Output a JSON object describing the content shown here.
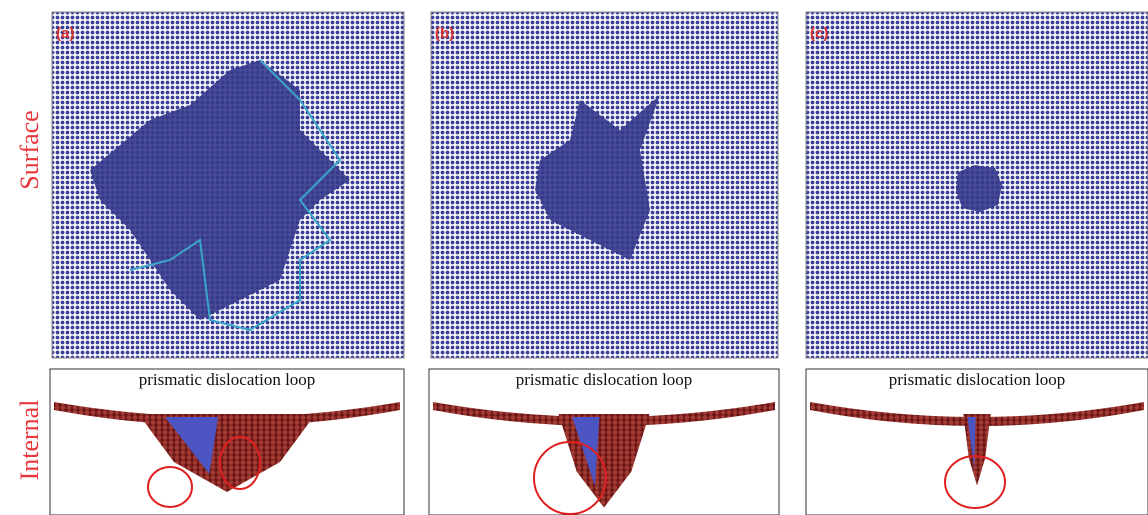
{
  "row_labels": [
    "Surface",
    "Internal"
  ],
  "panels": [
    {
      "label": "(a)",
      "caption": "prismatic dislocation loop"
    },
    {
      "label": "(b)",
      "caption": "prismatic dislocation loop"
    },
    {
      "label": "(c)",
      "caption": "prismatic dislocation loop"
    }
  ]
}
